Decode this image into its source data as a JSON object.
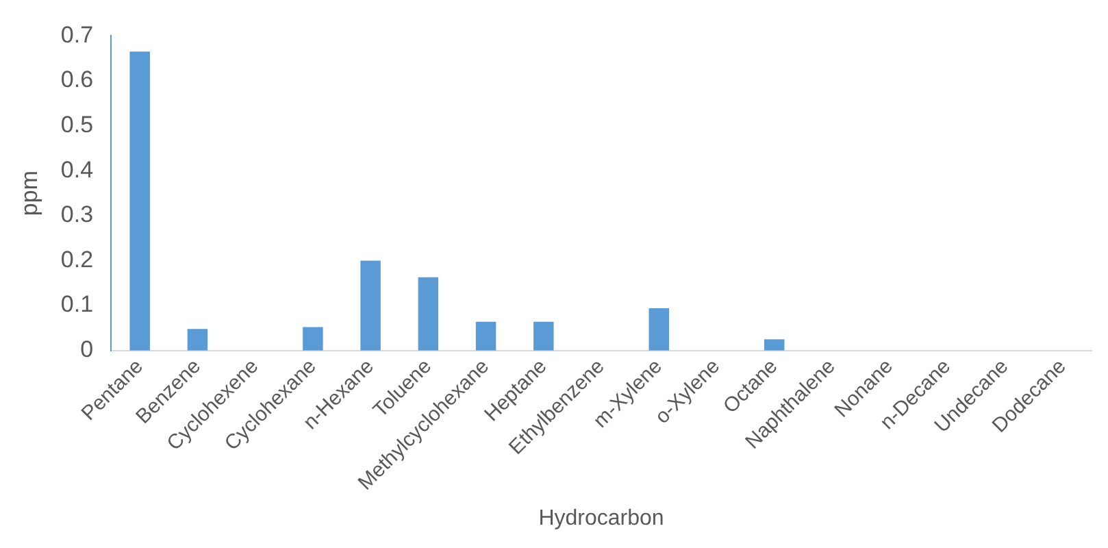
{
  "chart_data": {
    "type": "bar",
    "xlabel": "Hydrocarbon",
    "ylabel": "ppm",
    "categories": [
      "Pentane",
      "Benzene",
      "Cyclohexene",
      "Cyclohexane",
      "n-Hexane",
      "Toluene",
      "Methylcyclohexane",
      "Heptane",
      "Ethylbenzene",
      "m-Xylene",
      "o-Xylene",
      "Octane",
      "Naphthalene",
      "Nonane",
      "n-Decane",
      "Undecane",
      "Dodecane"
    ],
    "values": [
      0.665,
      0.048,
      0,
      0.052,
      0.2,
      0.163,
      0.064,
      0.064,
      0,
      0.094,
      0,
      0.025,
      0,
      0,
      0,
      0,
      0
    ],
    "color": "#5b9bd5",
    "ylim": [
      0,
      0.7
    ],
    "yticks": [
      0,
      0.1,
      0.2,
      0.3,
      0.4,
      0.5,
      0.6,
      0.7
    ],
    "grid": false,
    "legend": false
  }
}
